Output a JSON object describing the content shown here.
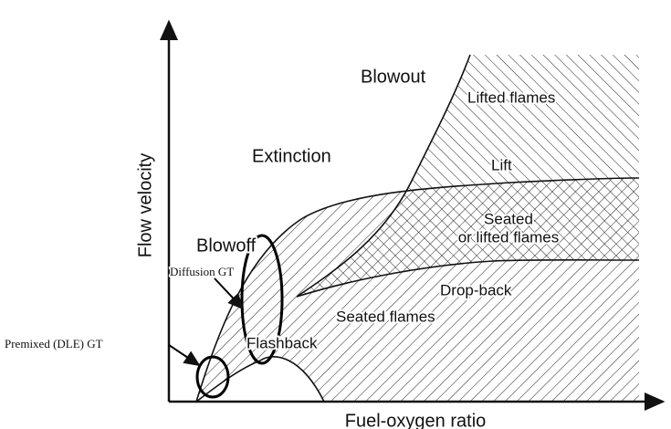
{
  "axes": {
    "y_label": "Flow velocity",
    "x_label": "Fuel-oxygen ratio"
  },
  "regions": {
    "blowout": "Blowout",
    "lifted_flames": "Lifted flames",
    "extinction": "Extinction",
    "lift": "Lift",
    "seated_or_lifted": [
      "Seated",
      "or lifted flames"
    ],
    "blowoff": "Blowoff",
    "drop_back": "Drop-back",
    "seated_flames": "Seated flames",
    "flashback": "Flashback"
  },
  "annotations": {
    "diffusion": "Diffusion GT",
    "premixed": "Premixed (DLE) GT"
  }
}
